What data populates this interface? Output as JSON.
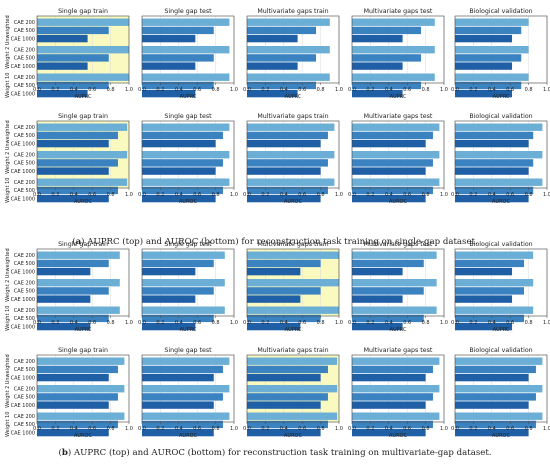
{
  "figure": {
    "captions": [
      {
        "letter": "a",
        "text": "AUPRC (top) and AUROC (bottom) for reconstruction task training on single-gap dataset."
      },
      {
        "letter": "b",
        "text": "AUPRC (top) and AUROC (bottom) for reconstruction task training on multivariate-gap dataset."
      }
    ],
    "panel_titles": [
      "Single gap train",
      "Single gap test",
      "Multivariate gaps train",
      "Multivariate gaps test",
      "Biological validation"
    ],
    "row_labels": [
      "CAE 200",
      "CAE 500",
      "CAE 1000"
    ],
    "group_labels": [
      "Unweighted",
      "Weight 2",
      "Weight 10"
    ],
    "x_ticks": [
      "0.0",
      "0.2",
      "0.4",
      "0.6",
      "0.8",
      "1.0"
    ],
    "colors": {
      "light": "#6baed6",
      "mid": "#3b83c0",
      "dark": "#1f5fa5",
      "highlight": "#fafac0"
    }
  },
  "chart_data": [
    {
      "id": "a-top",
      "type": "bar",
      "orientation": "horizontal",
      "xlabel": "AUPRC",
      "xlim": [
        0,
        1
      ],
      "grid": true,
      "highlight_panel": 0,
      "panels": [
        {
          "title": "Single gap train",
          "values": [
            [
              1.0,
              0.78,
              0.55
            ],
            [
              1.0,
              0.78,
              0.55
            ],
            [
              1.0,
              0.78,
              0.55
            ]
          ]
        },
        {
          "title": "Single gap test",
          "values": [
            [
              0.95,
              0.78,
              0.58
            ],
            [
              0.95,
              0.78,
              0.58
            ],
            [
              0.95,
              0.78,
              0.58
            ]
          ]
        },
        {
          "title": "Multivariate gaps train",
          "values": [
            [
              0.9,
              0.75,
              0.55
            ],
            [
              0.9,
              0.75,
              0.55
            ],
            [
              0.9,
              0.75,
              0.55
            ]
          ]
        },
        {
          "title": "Multivariate gaps test",
          "values": [
            [
              0.9,
              0.75,
              0.55
            ],
            [
              0.9,
              0.75,
              0.55
            ],
            [
              0.9,
              0.75,
              0.55
            ]
          ]
        },
        {
          "title": "Biological validation",
          "values": [
            [
              0.8,
              0.72,
              0.62
            ],
            [
              0.8,
              0.72,
              0.62
            ],
            [
              0.8,
              0.72,
              0.62
            ]
          ]
        }
      ]
    },
    {
      "id": "a-bottom",
      "type": "bar",
      "orientation": "horizontal",
      "xlabel": "AUROC",
      "xlim": [
        0,
        1
      ],
      "grid": true,
      "highlight_panel": 0,
      "panels": [
        {
          "title": "Single gap train",
          "values": [
            [
              0.98,
              0.88,
              0.78
            ],
            [
              0.98,
              0.88,
              0.78
            ],
            [
              0.98,
              0.88,
              0.78
            ]
          ]
        },
        {
          "title": "Single gap test",
          "values": [
            [
              0.95,
              0.88,
              0.8
            ],
            [
              0.95,
              0.88,
              0.8
            ],
            [
              0.95,
              0.88,
              0.8
            ]
          ]
        },
        {
          "title": "Multivariate gaps train",
          "values": [
            [
              0.95,
              0.88,
              0.8
            ],
            [
              0.95,
              0.88,
              0.8
            ],
            [
              0.95,
              0.88,
              0.8
            ]
          ]
        },
        {
          "title": "Multivariate gaps test",
          "values": [
            [
              0.95,
              0.88,
              0.8
            ],
            [
              0.95,
              0.88,
              0.8
            ],
            [
              0.95,
              0.88,
              0.8
            ]
          ]
        },
        {
          "title": "Biological validation",
          "values": [
            [
              0.95,
              0.85,
              0.8
            ],
            [
              0.95,
              0.85,
              0.8
            ],
            [
              0.95,
              0.85,
              0.8
            ]
          ]
        }
      ]
    },
    {
      "id": "b-top",
      "type": "bar",
      "orientation": "horizontal",
      "xlabel": "AUPRC",
      "xlim": [
        0,
        1
      ],
      "grid": true,
      "highlight_panel": 2,
      "panels": [
        {
          "title": "Single gap train",
          "values": [
            [
              0.9,
              0.78,
              0.58
            ],
            [
              0.9,
              0.78,
              0.58
            ],
            [
              0.9,
              0.78,
              0.58
            ]
          ]
        },
        {
          "title": "Single gap test",
          "values": [
            [
              0.9,
              0.78,
              0.58
            ],
            [
              0.9,
              0.78,
              0.58
            ],
            [
              0.9,
              0.78,
              0.58
            ]
          ]
        },
        {
          "title": "Multivariate gaps train",
          "values": [
            [
              1.0,
              0.8,
              0.58
            ],
            [
              1.0,
              0.8,
              0.58
            ],
            [
              1.0,
              0.8,
              0.58
            ]
          ]
        },
        {
          "title": "Multivariate gaps test",
          "values": [
            [
              0.92,
              0.78,
              0.55
            ],
            [
              0.92,
              0.78,
              0.55
            ],
            [
              0.92,
              0.78,
              0.55
            ]
          ]
        },
        {
          "title": "Biological validation",
          "values": [
            [
              0.85,
              0.75,
              0.62
            ],
            [
              0.85,
              0.75,
              0.62
            ],
            [
              0.85,
              0.75,
              0.62
            ]
          ]
        }
      ]
    },
    {
      "id": "b-bottom",
      "type": "bar",
      "orientation": "horizontal",
      "xlabel": "AUROC",
      "xlim": [
        0,
        1
      ],
      "grid": true,
      "highlight_panel": 2,
      "panels": [
        {
          "title": "Single gap train",
          "values": [
            [
              0.95,
              0.88,
              0.78
            ],
            [
              0.95,
              0.88,
              0.78
            ],
            [
              0.95,
              0.88,
              0.78
            ]
          ]
        },
        {
          "title": "Single gap test",
          "values": [
            [
              0.95,
              0.88,
              0.78
            ],
            [
              0.95,
              0.88,
              0.78
            ],
            [
              0.95,
              0.88,
              0.78
            ]
          ]
        },
        {
          "title": "Multivariate gaps train",
          "values": [
            [
              0.98,
              0.88,
              0.8
            ],
            [
              0.98,
              0.88,
              0.8
            ],
            [
              0.98,
              0.88,
              0.8
            ]
          ]
        },
        {
          "title": "Multivariate gaps test",
          "values": [
            [
              0.95,
              0.88,
              0.8
            ],
            [
              0.95,
              0.88,
              0.8
            ],
            [
              0.95,
              0.88,
              0.8
            ]
          ]
        },
        {
          "title": "Biological validation",
          "values": [
            [
              0.95,
              0.88,
              0.8
            ],
            [
              0.95,
              0.88,
              0.8
            ],
            [
              0.95,
              0.88,
              0.8
            ]
          ]
        }
      ]
    }
  ]
}
